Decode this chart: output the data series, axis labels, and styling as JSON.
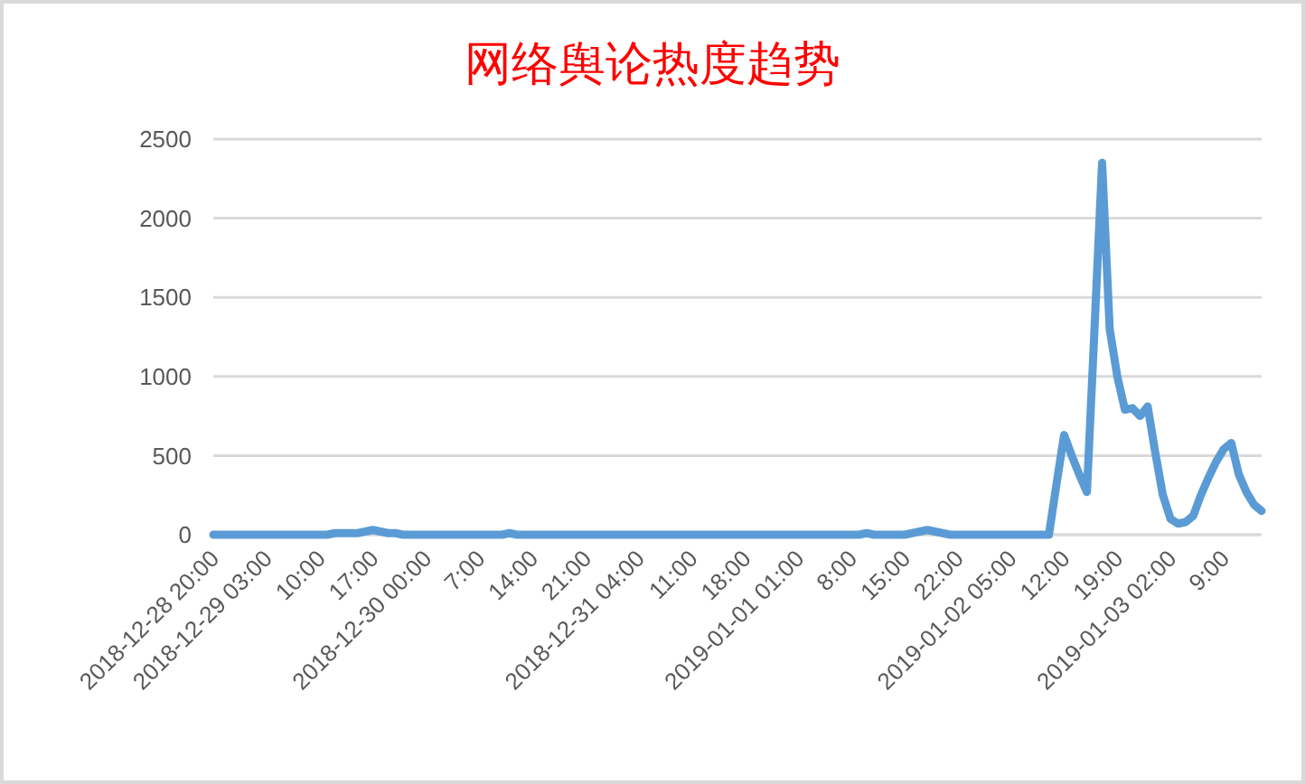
{
  "chart_data": {
    "type": "line",
    "title": "网络舆论热度趋势",
    "categories": [
      "2018-12-28 20:00",
      null,
      null,
      null,
      null,
      null,
      null,
      "2018-12-29 03:00",
      null,
      null,
      null,
      null,
      null,
      null,
      "10:00",
      null,
      null,
      null,
      null,
      null,
      null,
      "17:00",
      null,
      null,
      null,
      null,
      null,
      null,
      "2018-12-30 00:00",
      null,
      null,
      null,
      null,
      null,
      null,
      "7:00",
      null,
      null,
      null,
      null,
      null,
      null,
      "14:00",
      null,
      null,
      null,
      null,
      null,
      null,
      "21:00",
      null,
      null,
      null,
      null,
      null,
      null,
      "2018-12-31 04:00",
      null,
      null,
      null,
      null,
      null,
      null,
      "11:00",
      null,
      null,
      null,
      null,
      null,
      null,
      "18:00",
      null,
      null,
      null,
      null,
      null,
      null,
      "2019-01-01 01:00",
      null,
      null,
      null,
      null,
      null,
      null,
      "8:00",
      null,
      null,
      null,
      null,
      null,
      null,
      "15:00",
      null,
      null,
      null,
      null,
      null,
      null,
      "22:00",
      null,
      null,
      null,
      null,
      null,
      null,
      "2019-01-02 05:00",
      null,
      null,
      null,
      null,
      null,
      null,
      "12:00",
      null,
      null,
      null,
      null,
      null,
      null,
      "19:00",
      null,
      null,
      null,
      null,
      null,
      null,
      "2019-01-03 02:00",
      null,
      null,
      null,
      null,
      null,
      null,
      "9:00",
      null,
      null,
      null,
      null,
      null
    ],
    "values": [
      0,
      0,
      0,
      0,
      0,
      0,
      0,
      0,
      0,
      0,
      0,
      0,
      0,
      0,
      0,
      0,
      10,
      10,
      10,
      10,
      20,
      30,
      20,
      10,
      10,
      0,
      0,
      0,
      0,
      0,
      0,
      0,
      0,
      0,
      0,
      0,
      0,
      0,
      0,
      10,
      0,
      0,
      0,
      0,
      0,
      0,
      0,
      0,
      0,
      0,
      0,
      0,
      0,
      0,
      0,
      0,
      0,
      0,
      0,
      0,
      0,
      0,
      0,
      0,
      0,
      0,
      0,
      0,
      0,
      0,
      0,
      0,
      0,
      0,
      0,
      0,
      0,
      0,
      0,
      0,
      0,
      0,
      0,
      0,
      0,
      0,
      10,
      0,
      0,
      0,
      0,
      0,
      10,
      20,
      30,
      20,
      10,
      0,
      0,
      0,
      0,
      0,
      0,
      0,
      0,
      0,
      0,
      0,
      0,
      0,
      0,
      320,
      630,
      500,
      380,
      270,
      1300,
      2350,
      1300,
      1000,
      790,
      800,
      750,
      810,
      520,
      250,
      100,
      70,
      80,
      120,
      250,
      360,
      460,
      540,
      580,
      380,
      270,
      190,
      150
    ],
    "color": "#5b9bd5",
    "ylim": [
      0,
      2500
    ],
    "yticks": [
      0,
      500,
      1000,
      1500,
      2000,
      2500
    ],
    "grid": "y"
  }
}
